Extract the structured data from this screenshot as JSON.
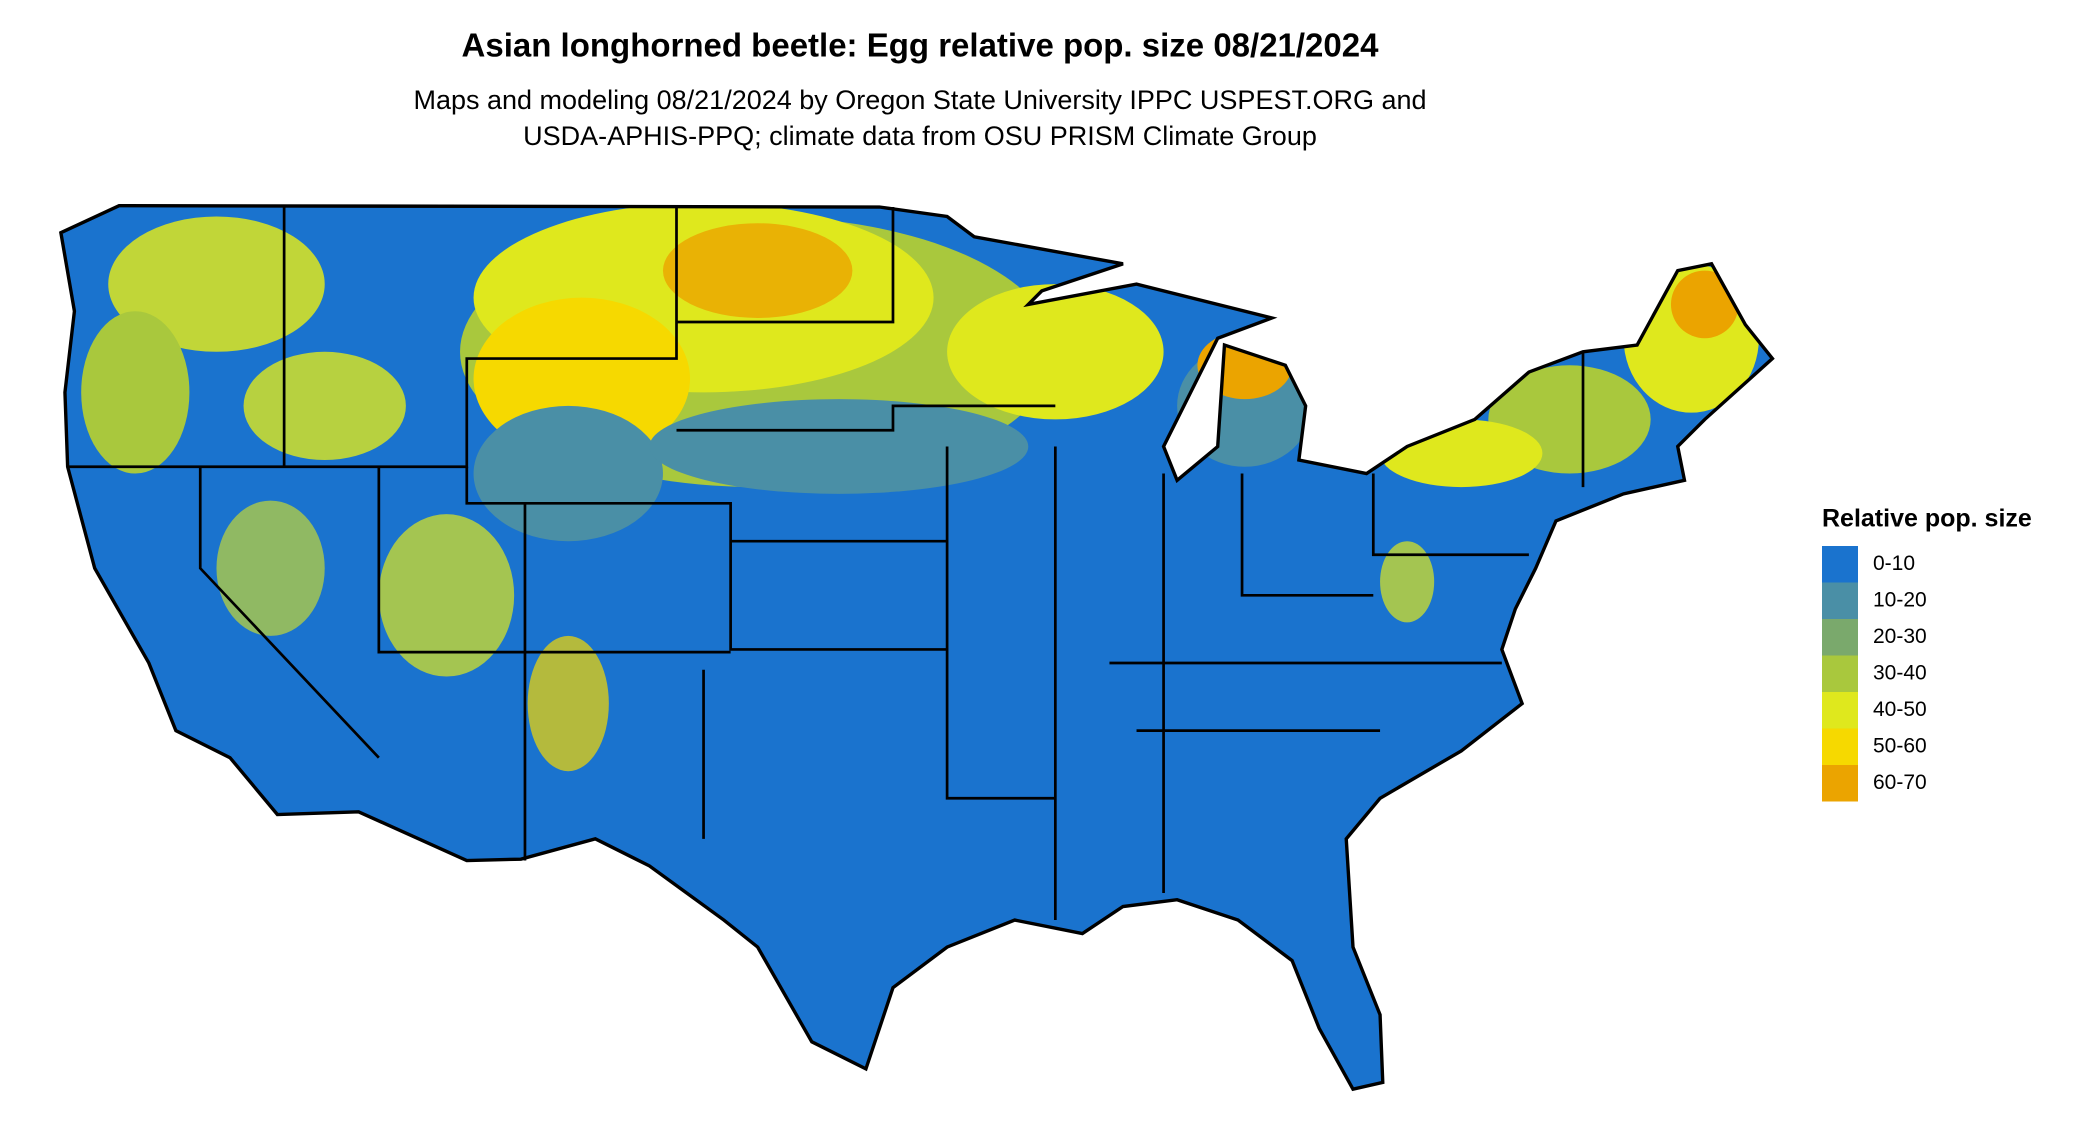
{
  "title": "Asian longhorned beetle: Egg relative pop. size 08/21/2024",
  "subtitle": [
    "Maps and modeling 08/21/2024 by Oregon State University IPPC USPEST.ORG and",
    "USDA-APHIS-PPQ; climate data from OSU PRISM Climate Group"
  ],
  "legend": {
    "title": "Relative pop. size",
    "items": [
      {
        "label": "0-10",
        "color": "#1a73ce"
      },
      {
        "label": "10-20",
        "color": "#4a8fa6"
      },
      {
        "label": "20-30",
        "color": "#7aa96c"
      },
      {
        "label": "30-40",
        "color": "#a9c83d"
      },
      {
        "label": "40-50",
        "color": "#dfe81d"
      },
      {
        "label": "50-60",
        "color": "#f6d900"
      },
      {
        "label": "60-70",
        "color": "#eba400"
      }
    ]
  }
}
